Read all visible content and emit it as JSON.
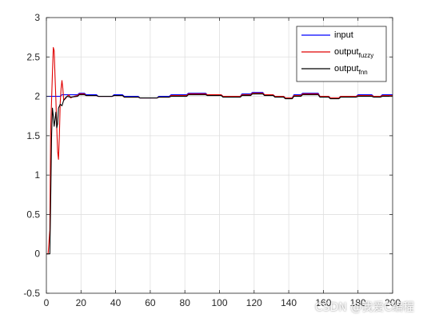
{
  "chart_data": {
    "type": "line",
    "xlim": [
      0,
      200
    ],
    "ylim": [
      -0.5,
      3
    ],
    "xticks": [
      0,
      20,
      40,
      60,
      80,
      100,
      120,
      140,
      160,
      180,
      200
    ],
    "yticks": [
      -0.5,
      0,
      0.5,
      1,
      1.5,
      2,
      2.5,
      3
    ],
    "grid": true,
    "legend_position": "top-right",
    "series": [
      {
        "name": "input",
        "color": "#0000ff",
        "points": [
          [
            0,
            2.0
          ],
          [
            8,
            2.0
          ],
          [
            9,
            2.02
          ],
          [
            18,
            2.02
          ],
          [
            19,
            2.04
          ],
          [
            22,
            2.04
          ],
          [
            23,
            2.02
          ],
          [
            29,
            2.02
          ],
          [
            30,
            2.0
          ],
          [
            38,
            2.0
          ],
          [
            39,
            2.02
          ],
          [
            44,
            2.02
          ],
          [
            45,
            2.0
          ],
          [
            53,
            2.0
          ],
          [
            54,
            1.98
          ],
          [
            64,
            1.98
          ],
          [
            65,
            2.0
          ],
          [
            71,
            2.0
          ],
          [
            72,
            2.02
          ],
          [
            81,
            2.02
          ],
          [
            82,
            2.04
          ],
          [
            92,
            2.04
          ],
          [
            93,
            2.02
          ],
          [
            101,
            2.02
          ],
          [
            102,
            2.0
          ],
          [
            112,
            2.0
          ],
          [
            113,
            2.03
          ],
          [
            118,
            2.03
          ],
          [
            119,
            2.05
          ],
          [
            125,
            2.05
          ],
          [
            126,
            2.02
          ],
          [
            131,
            2.02
          ],
          [
            132,
            2.0
          ],
          [
            137,
            2.0
          ],
          [
            138,
            1.98
          ],
          [
            142,
            1.98
          ],
          [
            143,
            2.02
          ],
          [
            147,
            2.02
          ],
          [
            148,
            2.04
          ],
          [
            157,
            2.04
          ],
          [
            158,
            2.0
          ],
          [
            163,
            2.0
          ],
          [
            164,
            1.98
          ],
          [
            169,
            1.98
          ],
          [
            170,
            2.0
          ],
          [
            179,
            2.0
          ],
          [
            180,
            2.02
          ],
          [
            188,
            2.02
          ],
          [
            189,
            2.0
          ],
          [
            193,
            2.0
          ],
          [
            194,
            2.02
          ],
          [
            200,
            2.02
          ]
        ]
      },
      {
        "name": "output",
        "subscript": "fuzzy",
        "color": "#e00000",
        "points": [
          [
            0,
            0.0
          ],
          [
            1,
            0.0
          ],
          [
            2,
            0.3
          ],
          [
            2.5,
            1.6
          ],
          [
            3,
            1.95
          ],
          [
            3.5,
            2.3
          ],
          [
            4,
            2.62
          ],
          [
            4.5,
            2.58
          ],
          [
            5,
            2.25
          ],
          [
            5.5,
            1.95
          ],
          [
            6,
            1.6
          ],
          [
            6.5,
            1.3
          ],
          [
            7,
            1.2
          ],
          [
            7.5,
            1.5
          ],
          [
            8,
            1.92
          ],
          [
            8.5,
            2.1
          ],
          [
            9,
            2.2
          ],
          [
            9.5,
            2.1
          ],
          [
            10,
            1.95
          ],
          [
            11,
            1.97
          ],
          [
            12,
            2.0
          ],
          [
            13,
            2.02
          ],
          [
            14,
            1.98
          ],
          [
            16,
            2.0
          ],
          [
            18,
            2.01
          ],
          [
            19,
            2.03
          ],
          [
            22,
            2.03
          ],
          [
            23,
            2.01
          ],
          [
            29,
            2.01
          ],
          [
            30,
            2.0
          ],
          [
            38,
            2.0
          ],
          [
            39,
            2.01
          ],
          [
            44,
            2.01
          ],
          [
            45,
            1.99
          ],
          [
            53,
            1.99
          ],
          [
            54,
            1.98
          ],
          [
            64,
            1.98
          ],
          [
            65,
            1.99
          ],
          [
            71,
            1.99
          ],
          [
            72,
            2.01
          ],
          [
            81,
            2.01
          ],
          [
            82,
            2.03
          ],
          [
            92,
            2.03
          ],
          [
            93,
            2.02
          ],
          [
            101,
            2.02
          ],
          [
            102,
            2.0
          ],
          [
            112,
            2.0
          ],
          [
            113,
            2.02
          ],
          [
            118,
            2.02
          ],
          [
            119,
            2.04
          ],
          [
            125,
            2.04
          ],
          [
            126,
            2.02
          ],
          [
            131,
            2.02
          ],
          [
            132,
            2.0
          ],
          [
            137,
            2.0
          ],
          [
            138,
            1.98
          ],
          [
            142,
            1.98
          ],
          [
            143,
            2.01
          ],
          [
            147,
            2.01
          ],
          [
            148,
            2.03
          ],
          [
            157,
            2.03
          ],
          [
            158,
            2.0
          ],
          [
            163,
            2.0
          ],
          [
            164,
            1.98
          ],
          [
            169,
            1.98
          ],
          [
            170,
            2.0
          ],
          [
            179,
            2.0
          ],
          [
            180,
            2.01
          ],
          [
            188,
            2.01
          ],
          [
            189,
            2.0
          ],
          [
            193,
            2.0
          ],
          [
            194,
            2.01
          ],
          [
            200,
            2.01
          ]
        ]
      },
      {
        "name": "output",
        "subscript": "fnn",
        "color": "#000000",
        "points": [
          [
            0,
            0.0
          ],
          [
            2,
            0.0
          ],
          [
            2.5,
            0.7
          ],
          [
            3,
            1.5
          ],
          [
            3.5,
            1.85
          ],
          [
            4,
            1.75
          ],
          [
            4.5,
            1.62
          ],
          [
            5,
            1.7
          ],
          [
            5.5,
            1.8
          ],
          [
            6,
            1.6
          ],
          [
            6.5,
            1.65
          ],
          [
            7,
            1.85
          ],
          [
            8,
            1.9
          ],
          [
            9,
            1.88
          ],
          [
            10,
            1.95
          ],
          [
            11,
            1.98
          ],
          [
            12,
            2.0
          ],
          [
            14,
            1.99
          ],
          [
            18,
            2.0
          ],
          [
            19,
            2.02
          ],
          [
            22,
            2.02
          ],
          [
            23,
            2.01
          ],
          [
            29,
            2.01
          ],
          [
            30,
            2.0
          ],
          [
            38,
            2.0
          ],
          [
            39,
            2.01
          ],
          [
            44,
            2.01
          ],
          [
            45,
            1.99
          ],
          [
            53,
            1.99
          ],
          [
            54,
            1.98
          ],
          [
            64,
            1.98
          ],
          [
            65,
            1.99
          ],
          [
            71,
            1.99
          ],
          [
            72,
            2.0
          ],
          [
            81,
            2.0
          ],
          [
            82,
            2.02
          ],
          [
            92,
            2.02
          ],
          [
            93,
            2.01
          ],
          [
            101,
            2.01
          ],
          [
            102,
            1.99
          ],
          [
            112,
            1.99
          ],
          [
            113,
            2.01
          ],
          [
            118,
            2.01
          ],
          [
            119,
            2.03
          ],
          [
            125,
            2.03
          ],
          [
            126,
            2.01
          ],
          [
            131,
            2.01
          ],
          [
            132,
            1.99
          ],
          [
            137,
            1.99
          ],
          [
            138,
            1.97
          ],
          [
            142,
            1.97
          ],
          [
            143,
            2.0
          ],
          [
            147,
            2.0
          ],
          [
            148,
            2.02
          ],
          [
            157,
            2.02
          ],
          [
            158,
            1.99
          ],
          [
            163,
            1.99
          ],
          [
            164,
            1.97
          ],
          [
            169,
            1.97
          ],
          [
            170,
            1.99
          ],
          [
            179,
            1.99
          ],
          [
            180,
            2.0
          ],
          [
            188,
            2.0
          ],
          [
            189,
            1.99
          ],
          [
            193,
            1.99
          ],
          [
            194,
            2.0
          ],
          [
            200,
            2.0
          ]
        ]
      }
    ]
  },
  "watermark": "CSDN @我爱C编程"
}
